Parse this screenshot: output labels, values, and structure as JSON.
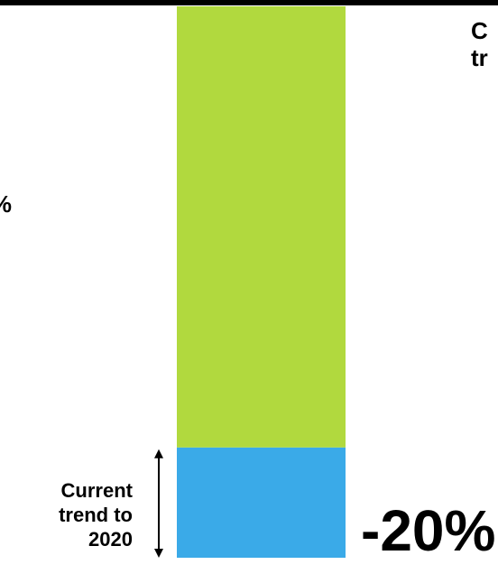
{
  "chart_data": {
    "type": "bar",
    "orientation": "vertical-stacked",
    "segments": [
      {
        "name": "",
        "value": 20,
        "color": "#3aaae8"
      },
      {
        "name": "",
        "value": 80,
        "color": "#b1d93e"
      }
    ],
    "ylim": [
      0,
      100
    ],
    "annotations": {
      "current_trend": "Current\ntrend to\n2020",
      "current_trend_value": "-20%",
      "target_partial": "t:\n%",
      "right_partial": "C\ntr"
    }
  },
  "colors": {
    "background": "#ffffff",
    "top_rule": "#000000",
    "arrow": "#000000"
  }
}
